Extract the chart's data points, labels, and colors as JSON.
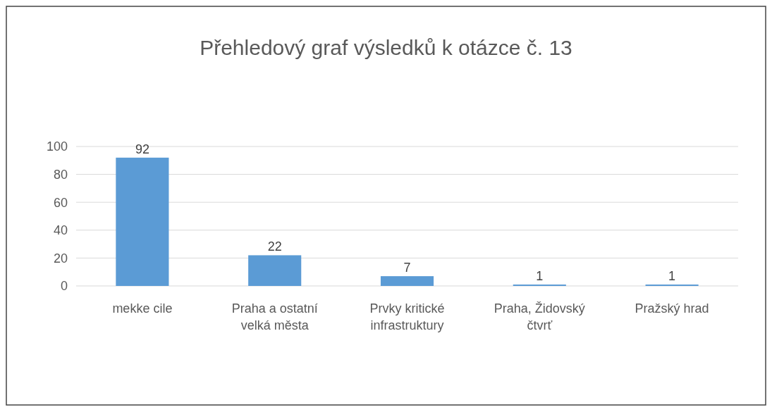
{
  "chart_data": {
    "type": "bar",
    "title": "Přehledový graf výsledků k otázce č. 13",
    "categories": [
      "mekke cile",
      "Praha a ostatní velká města",
      "Prvky kritické infrastruktury",
      "Praha, Židovský čtvrť",
      "Pražský hrad"
    ],
    "values": [
      92,
      22,
      7,
      1,
      1
    ],
    "color": "#5b9bd5",
    "ylim": [
      0,
      100
    ],
    "yticks": [
      0,
      20,
      40,
      60,
      80,
      100
    ],
    "grid": "y",
    "data_labels": true
  }
}
